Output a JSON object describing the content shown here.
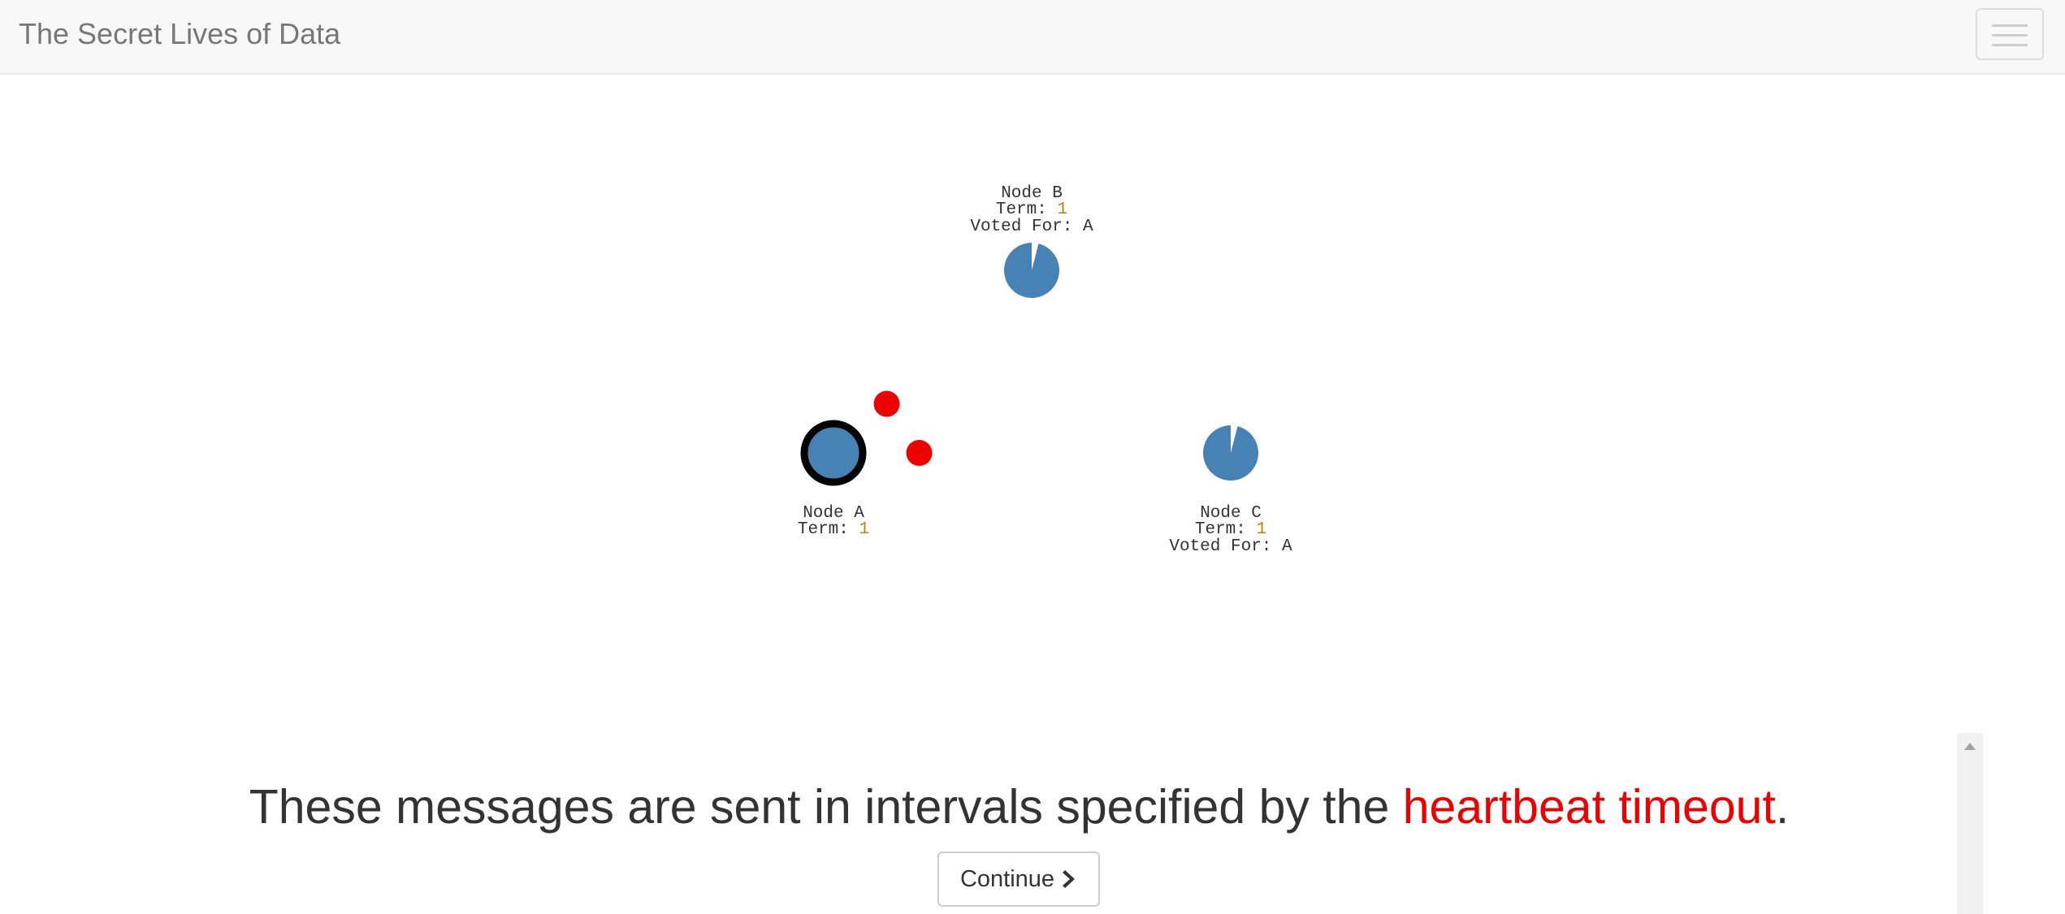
{
  "header": {
    "brand": "The Secret Lives of Data",
    "menu_icon": "hamburger-menu-icon"
  },
  "colors": {
    "node_fill": "#4682b4",
    "message": "#ee0000",
    "highlight": "#ee0000",
    "leader_ring": "#000000"
  },
  "nodes": [
    {
      "id": "B",
      "name": "Node B",
      "term_label": "Term: ",
      "term": "1",
      "voted_label": "Voted For: A",
      "role": "follower",
      "timeout_progress": 0.04
    },
    {
      "id": "A",
      "name": "Node A",
      "term_label": "Term: ",
      "term": "1",
      "voted_label": "",
      "role": "leader",
      "timeout_progress": 0
    },
    {
      "id": "C",
      "name": "Node C",
      "term_label": "Term: ",
      "term": "1",
      "voted_label": "Voted For: A",
      "role": "follower",
      "timeout_progress": 0.04
    }
  ],
  "messages": [
    {
      "from": "A",
      "to": "B",
      "progress": 0.18
    },
    {
      "from": "A",
      "to": "C",
      "progress": 0.15
    }
  ],
  "caption": {
    "before": "These messages are sent in intervals specified by the ",
    "highlight": "heartbeat timeout",
    "after": "."
  },
  "continue_button": {
    "label": "Continue",
    "icon": "chevron-right-icon"
  },
  "scrollbar": {
    "icon": "scroll-up-arrow-icon"
  }
}
